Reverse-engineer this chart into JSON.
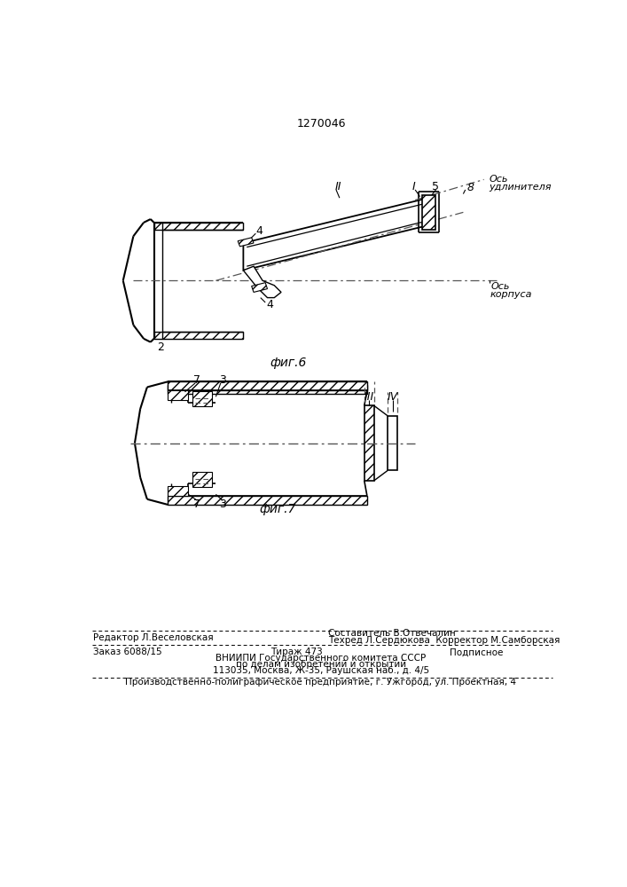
{
  "title": "1270046",
  "bg_color": "#ffffff",
  "fig6_label": "фиг.6",
  "fig7_label": "фиг.7",
  "line_color": "#000000",
  "dash_color": "#555555",
  "hatch_pattern": "///",
  "footer": {
    "line1_left": "Редактор Л.Веселовская",
    "line1_right1": "Составитель В.Отвечалин",
    "line1_right2": "Техред Л.Сердюкова  Корректор М.Самборская",
    "line2_left": "Заказ 6088/15",
    "line2_center": "Тираж 473",
    "line2_right": "Подписное",
    "line3": "ВНИИПИ Государственного комитета СССР",
    "line4": "по делам изобретений и открытий",
    "line5": "113035, Москва, Ж-35, Раушская наб., д. 4/5",
    "line6": "Производственно-полиграфическое предприятие, г. Ужгород, ул. Проектная, 4"
  }
}
